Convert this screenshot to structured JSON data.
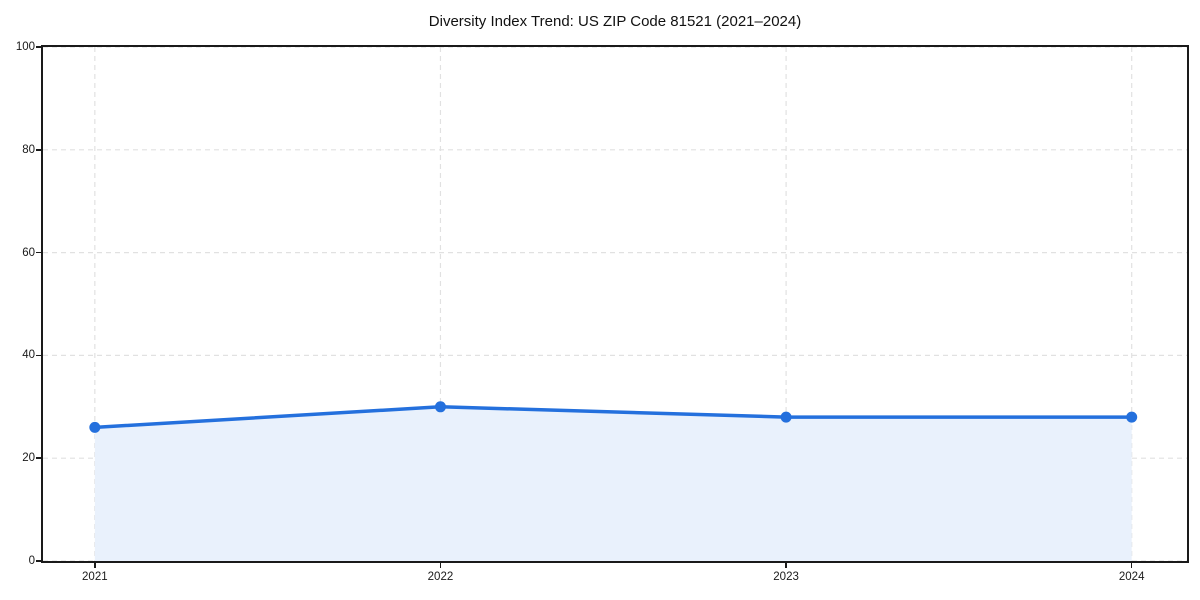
{
  "title": "Diversity Index Trend: US ZIP Code 81521 (2021–2024)",
  "chart_data": {
    "type": "area",
    "title": "Diversity Index Trend: US ZIP Code 81521 (2021–2024)",
    "series_name": "Diversity Index",
    "x": [
      2021,
      2022,
      2023,
      2024
    ],
    "values": [
      26,
      30,
      28,
      28
    ],
    "xticks": [
      2021,
      2022,
      2023,
      2024
    ],
    "yticks": [
      0,
      20,
      40,
      60,
      80,
      100
    ],
    "xlim": [
      2020.85,
      2024.16
    ],
    "ylim": [
      0,
      100
    ],
    "xlabel": "",
    "ylabel": "",
    "grid": true,
    "grid_style": "dashed",
    "legend": false,
    "marker": "circle",
    "colors": {
      "line": "#2470dd",
      "marker": "#2470dd",
      "fill": "#e9f1fc",
      "grid": "#e1e1e1",
      "spine": "#1a1a1a",
      "tick_text": "#1a1a1a",
      "title_text": "#111111",
      "background": "#ffffff"
    }
  }
}
